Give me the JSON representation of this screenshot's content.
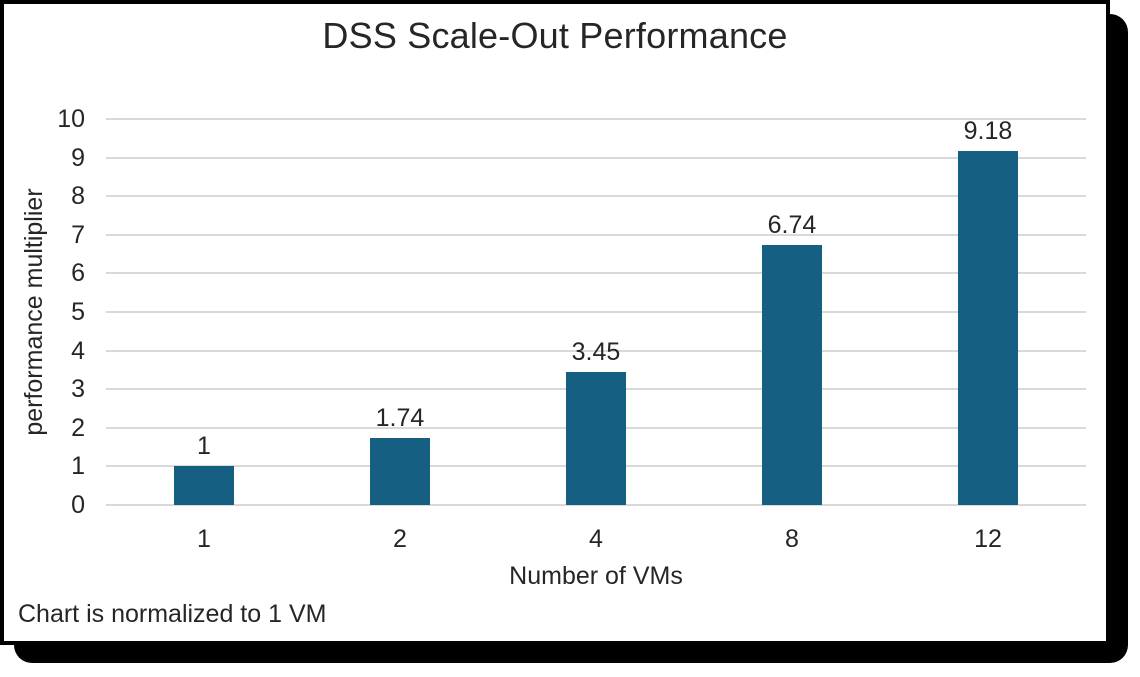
{
  "chart_data": {
    "type": "bar",
    "title": "DSS Scale-Out Performance",
    "xlabel": "Number of VMs",
    "ylabel": "performance multiplier",
    "footnote": "Chart is normalized to 1 VM",
    "categories": [
      "1",
      "2",
      "4",
      "8",
      "12"
    ],
    "values": [
      1,
      1.74,
      3.45,
      6.74,
      9.18
    ],
    "data_labels": [
      "1",
      "1.74",
      "3.45",
      "6.74",
      "9.18"
    ],
    "ylim": [
      0,
      10
    ],
    "ytick_step": 1,
    "grid": true,
    "legend": "none",
    "bar_color": "#156082",
    "gridline_color": "#D9D9D9",
    "text_color": "#262626",
    "frame_color": "#000000",
    "background_color": "#FFFFFF"
  }
}
